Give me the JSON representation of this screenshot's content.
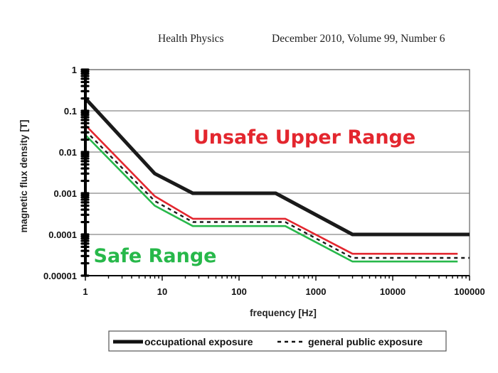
{
  "header": {
    "journal": "Health Physics",
    "issue": "December 2010, Volume 99, Number 6"
  },
  "chart_data": {
    "type": "line",
    "xlabel": "frequency [Hz]",
    "ylabel": "magnetic flux density [T]",
    "x_scale": "log",
    "y_scale": "log",
    "xlim": [
      1,
      100000
    ],
    "ylim": [
      1e-05,
      1
    ],
    "x_ticks": [
      "1",
      "10",
      "100",
      "1000",
      "10000",
      "100000"
    ],
    "y_ticks": [
      "1",
      "0.1",
      "0.01",
      "0.001",
      "0.0001",
      "0.00001"
    ],
    "grid": "horizontal",
    "series": [
      {
        "name": "occupational exposure",
        "color": "#1a1a1a",
        "style": "solid",
        "points": [
          [
            1,
            0.2
          ],
          [
            8,
            0.003
          ],
          [
            25,
            0.001
          ],
          [
            300,
            0.001
          ],
          [
            3000,
            0.0001
          ],
          [
            100000,
            0.0001
          ]
        ]
      },
      {
        "name": "general public exposure",
        "color": "#1a1a1a",
        "style": "dashed",
        "points": [
          [
            1,
            0.033
          ],
          [
            8,
            0.00065
          ],
          [
            25,
            0.0002
          ],
          [
            400,
            0.0002
          ],
          [
            3000,
            2.7e-05
          ],
          [
            100000,
            2.7e-05
          ]
        ]
      },
      {
        "color": "#e3262e",
        "style": "solid",
        "points": [
          [
            1,
            0.045
          ],
          [
            8,
            0.00085
          ],
          [
            25,
            0.00024
          ],
          [
            400,
            0.00024
          ],
          [
            3000,
            3.4e-05
          ],
          [
            70000,
            3.4e-05
          ]
        ]
      },
      {
        "color": "#27b84a",
        "style": "solid",
        "points": [
          [
            1,
            0.026
          ],
          [
            8,
            0.0005
          ],
          [
            25,
            0.00016
          ],
          [
            400,
            0.00016
          ],
          [
            3000,
            2.2e-05
          ],
          [
            70000,
            2.2e-05
          ]
        ]
      }
    ],
    "annotations": [
      {
        "text": "Unsafe Upper Range",
        "color": "#e3262e"
      },
      {
        "text": "Safe Range",
        "color": "#27b84a"
      }
    ],
    "legend": {
      "placement": "bottom",
      "entries": [
        "occupational exposure",
        "general public exposure"
      ]
    }
  }
}
